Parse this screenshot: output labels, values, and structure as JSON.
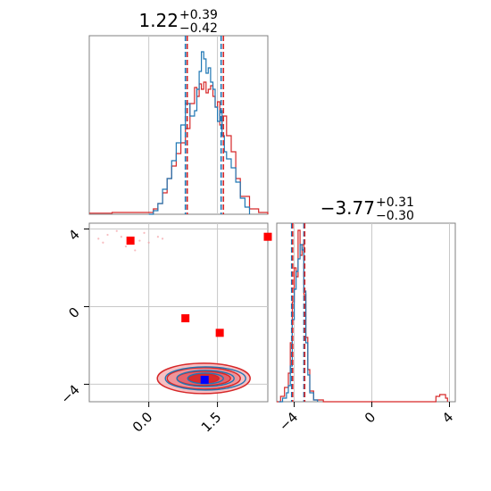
{
  "chart_data": {
    "type": "corner",
    "parameters": [
      {
        "value": "1.22",
        "plus": "+0.39",
        "minus": "−0.42",
        "range": [
          -1.3,
          2.6
        ],
        "marker_lines": [
          0.8,
          0.84,
          1.58,
          1.63
        ],
        "ticks": [
          0.0,
          1.5
        ],
        "tick_labels": [
          "0.0",
          "1.5"
        ]
      },
      {
        "value": "−3.77",
        "plus": "+0.31",
        "minus": "−0.30",
        "range": [
          -4.9,
          4.3
        ],
        "marker_lines": [
          -4.13,
          -4.08,
          -3.5,
          -3.46
        ],
        "ticks": [
          -4,
          0,
          4
        ],
        "tick_labels": [
          "−4",
          "0",
          "4"
        ]
      }
    ],
    "hist_p1": {
      "blue": [
        [
          0.0,
          0.0
        ],
        [
          0.1,
          0.02
        ],
        [
          0.2,
          0.06
        ],
        [
          0.3,
          0.14
        ],
        [
          0.4,
          0.2
        ],
        [
          0.5,
          0.3
        ],
        [
          0.6,
          0.4
        ],
        [
          0.7,
          0.5
        ],
        [
          0.8,
          0.62
        ],
        [
          0.9,
          0.55
        ],
        [
          1.0,
          0.58
        ],
        [
          1.05,
          0.7
        ],
        [
          1.1,
          0.8
        ],
        [
          1.15,
          0.91
        ],
        [
          1.2,
          0.87
        ],
        [
          1.25,
          0.79
        ],
        [
          1.3,
          0.82
        ],
        [
          1.35,
          0.74
        ],
        [
          1.4,
          0.7
        ],
        [
          1.45,
          0.6
        ],
        [
          1.5,
          0.52
        ],
        [
          1.55,
          0.58
        ],
        [
          1.6,
          0.44
        ],
        [
          1.65,
          0.35
        ],
        [
          1.7,
          0.31
        ],
        [
          1.8,
          0.26
        ],
        [
          1.9,
          0.18
        ],
        [
          2.0,
          0.09
        ],
        [
          2.1,
          0.04
        ],
        [
          2.2,
          0.0
        ]
      ],
      "red": [
        [
          -1.3,
          0.006
        ],
        [
          -0.8,
          0.01
        ],
        [
          -0.3,
          0.01
        ],
        [
          0.0,
          0.01
        ],
        [
          0.1,
          0.03
        ],
        [
          0.2,
          0.06
        ],
        [
          0.3,
          0.12
        ],
        [
          0.4,
          0.2
        ],
        [
          0.5,
          0.27
        ],
        [
          0.6,
          0.34
        ],
        [
          0.7,
          0.4
        ],
        [
          0.8,
          0.48
        ],
        [
          0.9,
          0.62
        ],
        [
          1.0,
          0.71
        ],
        [
          1.05,
          0.66
        ],
        [
          1.1,
          0.73
        ],
        [
          1.15,
          0.7
        ],
        [
          1.2,
          0.74
        ],
        [
          1.25,
          0.68
        ],
        [
          1.3,
          0.7
        ],
        [
          1.35,
          0.72
        ],
        [
          1.4,
          0.66
        ],
        [
          1.45,
          0.6
        ],
        [
          1.5,
          0.63
        ],
        [
          1.55,
          0.5
        ],
        [
          1.6,
          0.55
        ],
        [
          1.7,
          0.44
        ],
        [
          1.8,
          0.35
        ],
        [
          1.9,
          0.2
        ],
        [
          2.0,
          0.1
        ],
        [
          2.2,
          0.03
        ],
        [
          2.4,
          0.01
        ],
        [
          2.6,
          0.0
        ]
      ]
    },
    "hist_p2": {
      "blue": [
        [
          -4.8,
          0.0
        ],
        [
          -4.6,
          0.02
        ],
        [
          -4.4,
          0.05
        ],
        [
          -4.3,
          0.09
        ],
        [
          -4.2,
          0.2
        ],
        [
          -4.1,
          0.46
        ],
        [
          -4.0,
          0.63
        ],
        [
          -3.9,
          0.73
        ],
        [
          -3.8,
          0.8
        ],
        [
          -3.7,
          0.88
        ],
        [
          -3.6,
          0.85
        ],
        [
          -3.5,
          0.62
        ],
        [
          -3.4,
          0.33
        ],
        [
          -3.3,
          0.15
        ],
        [
          -3.2,
          0.05
        ],
        [
          -3.0,
          0.01
        ],
        [
          -2.8,
          0.0
        ]
      ],
      "red": [
        [
          -4.9,
          0.0
        ],
        [
          -4.7,
          0.03
        ],
        [
          -4.5,
          0.08
        ],
        [
          -4.3,
          0.16
        ],
        [
          -4.2,
          0.33
        ],
        [
          -4.1,
          0.56
        ],
        [
          -4.0,
          0.75
        ],
        [
          -3.9,
          0.7
        ],
        [
          -3.8,
          0.96
        ],
        [
          -3.7,
          0.82
        ],
        [
          -3.6,
          0.88
        ],
        [
          -3.5,
          0.6
        ],
        [
          -3.4,
          0.36
        ],
        [
          -3.3,
          0.18
        ],
        [
          -3.2,
          0.06
        ],
        [
          -3.0,
          0.01
        ],
        [
          -2.5,
          0.0
        ],
        [
          3.2,
          0.0
        ],
        [
          3.3,
          0.03
        ],
        [
          3.5,
          0.04
        ],
        [
          3.8,
          0.02
        ],
        [
          3.9,
          0.0
        ]
      ]
    },
    "points_red": [
      [
        -0.4,
        3.4
      ],
      [
        0.8,
        -0.6
      ],
      [
        1.55,
        -1.35
      ],
      [
        2.6,
        3.6
      ]
    ],
    "point_blue": [
      1.22,
      -3.77
    ],
    "contour_center": [
      1.2,
      -3.7
    ],
    "scatter_red": [
      [
        -0.9,
        3.7
      ],
      [
        -0.6,
        3.6
      ],
      [
        -0.2,
        3.4
      ],
      [
        -0.5,
        3.1
      ],
      [
        -1.1,
        3.5
      ],
      [
        -0.1,
        3.8
      ],
      [
        0.0,
        3.3
      ],
      [
        -0.7,
        3.9
      ],
      [
        -1.0,
        3.3
      ],
      [
        -0.3,
        2.9
      ],
      [
        0.2,
        3.6
      ],
      [
        0.3,
        3.5
      ]
    ],
    "colors": {
      "blue": "#1f77b4",
      "red": "#d62728",
      "marker_red": "#ff0000",
      "marker_blue": "#0000ff",
      "grid": "#c8c8c8",
      "axes": "#808080"
    }
  }
}
